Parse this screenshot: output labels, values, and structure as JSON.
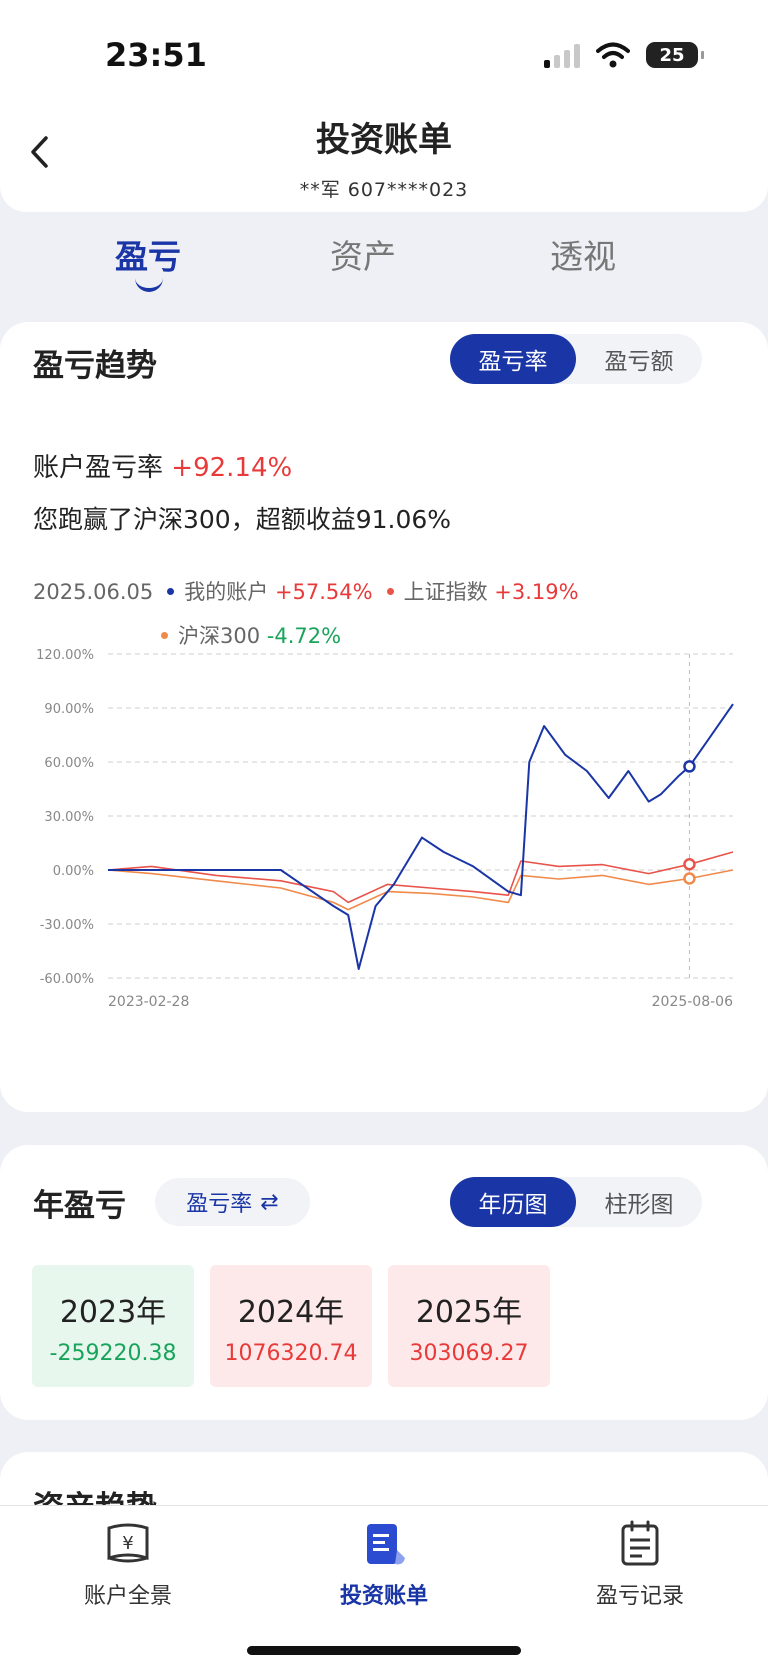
{
  "status_bar": {
    "time": "23:51",
    "battery": "25"
  },
  "header": {
    "title": "投资账单",
    "account": "**军 607****023"
  },
  "tabs": [
    {
      "label": "盈亏",
      "active": true
    },
    {
      "label": "资产",
      "active": false
    },
    {
      "label": "透视",
      "active": false
    }
  ],
  "trend": {
    "title": "盈亏趋势",
    "toggle": [
      {
        "label": "盈亏率",
        "active": true
      },
      {
        "label": "盈亏额",
        "active": false
      }
    ],
    "rate_label": "账户盈亏率",
    "rate_value": "+92.14%",
    "beat_text": "您跑赢了沪深300，超额收益91.06%",
    "legend": {
      "date": "2025.06.05",
      "items": [
        {
          "name": "我的账户",
          "value": "+57.54%",
          "color": "#1a35a6",
          "trend": "up"
        },
        {
          "name": "上证指数",
          "value": "+3.19%",
          "color": "#e8534a",
          "trend": "up"
        },
        {
          "name": "沪深300",
          "value": "-4.72%",
          "color": "#f08a4b",
          "trend": "down"
        }
      ]
    }
  },
  "chart_data": {
    "type": "line",
    "x_start": "2023-02-28",
    "x_end": "2025-08-06",
    "y_ticks": [
      "120.00%",
      "90.00%",
      "60.00%",
      "30.00%",
      "0.00%",
      "-30.00%",
      "-60.00%"
    ],
    "ylim": [
      -60,
      120
    ],
    "unit": "%",
    "grid": true,
    "crosshair_date": "2025.06.05",
    "series": [
      {
        "name": "我的账户",
        "color": "#1a35a6",
        "x": [
          "2023-02-28",
          "2023-04-01",
          "2023-06-01",
          "2023-08-01",
          "2023-09-01",
          "2023-10-01",
          "2023-11-01",
          "2023-12-01",
          "2024-01-15",
          "2024-02-05",
          "2024-02-20",
          "2024-03-15",
          "2024-04-10",
          "2024-05-20",
          "2024-06-20",
          "2024-08-01",
          "2024-09-20",
          "2024-10-08",
          "2024-10-20",
          "2024-11-10",
          "2024-12-10",
          "2025-01-10",
          "2025-02-10",
          "2025-03-10",
          "2025-04-08",
          "2025-04-25",
          "2025-05-20",
          "2025-06-05",
          "2025-07-01",
          "2025-08-06"
        ],
        "values": [
          0,
          0,
          0,
          0,
          0,
          0,
          0,
          -8,
          -20,
          -25,
          -55,
          -20,
          -8,
          18,
          10,
          2,
          -12,
          -14,
          60,
          80,
          64,
          55,
          40,
          55,
          38,
          42,
          52,
          57.54,
          72,
          92.14
        ]
      },
      {
        "name": "上证指数",
        "color": "#e8534a",
        "x": [
          "2023-02-28",
          "2023-05-01",
          "2023-08-01",
          "2023-11-01",
          "2024-01-15",
          "2024-02-05",
          "2024-04-01",
          "2024-06-01",
          "2024-08-01",
          "2024-09-20",
          "2024-10-08",
          "2024-12-01",
          "2025-02-01",
          "2025-04-08",
          "2025-06-05",
          "2025-08-06"
        ],
        "values": [
          0,
          2,
          -3,
          -6,
          -12,
          -18,
          -8,
          -10,
          -12,
          -14,
          5,
          2,
          3,
          -2,
          3.19,
          10
        ]
      },
      {
        "name": "沪深300",
        "color": "#f08a4b",
        "x": [
          "2023-02-28",
          "2023-05-01",
          "2023-08-01",
          "2023-11-01",
          "2024-01-15",
          "2024-02-05",
          "2024-04-01",
          "2024-06-01",
          "2024-08-01",
          "2024-09-20",
          "2024-10-08",
          "2024-12-01",
          "2025-02-01",
          "2025-04-08",
          "2025-06-05",
          "2025-08-06"
        ],
        "values": [
          0,
          -2,
          -6,
          -10,
          -18,
          -22,
          -12,
          -13,
          -15,
          -18,
          -3,
          -5,
          -3,
          -8,
          -4.72,
          0
        ]
      }
    ]
  },
  "annual": {
    "title": "年盈亏",
    "metric_pill": "盈亏率",
    "swap_icon": "⇄",
    "toggle": [
      {
        "label": "年历图",
        "active": true
      },
      {
        "label": "柱形图",
        "active": false
      }
    ],
    "years": [
      {
        "year": "2023年",
        "value": "-259220.38",
        "trend": "down"
      },
      {
        "year": "2024年",
        "value": "1076320.74",
        "trend": "up"
      },
      {
        "year": "2025年",
        "value": "303069.27",
        "trend": "up"
      }
    ]
  },
  "asset_trend": {
    "title": "资产趋势"
  },
  "bottom_nav": [
    {
      "label": "账户全景",
      "icon": "scroll-yen-icon",
      "active": false
    },
    {
      "label": "投资账单",
      "icon": "bill-icon",
      "active": true
    },
    {
      "label": "盈亏记录",
      "icon": "clipboard-icon",
      "active": false
    }
  ]
}
